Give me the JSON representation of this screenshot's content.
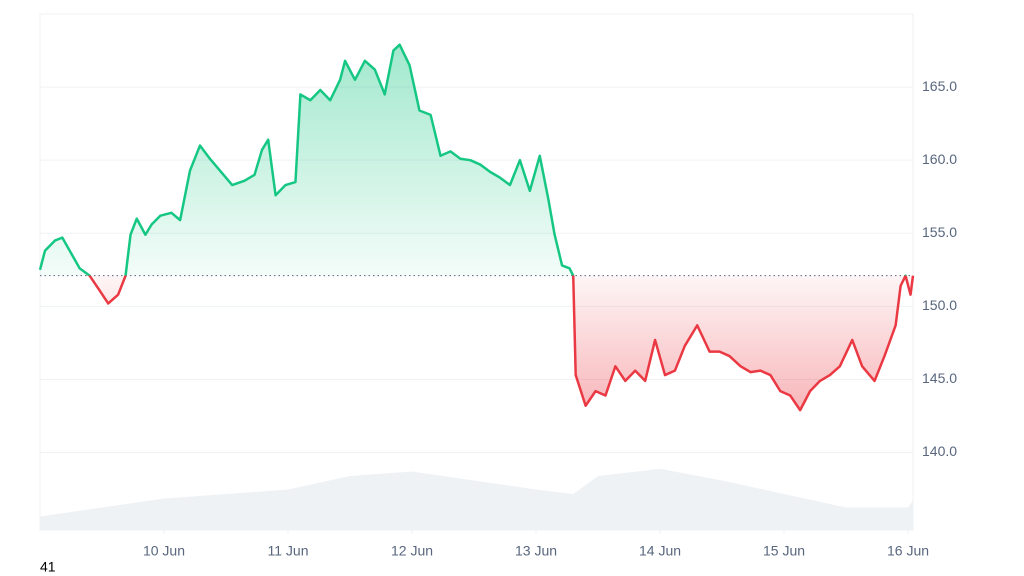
{
  "chart_data": {
    "type": "line",
    "x": [
      9.0,
      9.04,
      9.12,
      9.18,
      9.24,
      9.32,
      9.4,
      9.48,
      9.55,
      9.63,
      9.69,
      9.73,
      9.78,
      9.85,
      9.9,
      9.97,
      10.06,
      10.13,
      10.21,
      10.29,
      10.37,
      10.45,
      10.55,
      10.65,
      10.73,
      10.79,
      10.84,
      10.9,
      10.98,
      11.06,
      11.1,
      11.18,
      11.26,
      11.34,
      11.42,
      11.46,
      11.54,
      11.62,
      11.7,
      11.78,
      11.85,
      11.9,
      11.98,
      12.06,
      12.15,
      12.23,
      12.31,
      12.39,
      12.47,
      12.55,
      12.63,
      12.71,
      12.79,
      12.87,
      12.95,
      13.03,
      13.1,
      13.15,
      13.21,
      13.27,
      13.3,
      13.32,
      13.4,
      13.48,
      13.56,
      13.64,
      13.72,
      13.8,
      13.88,
      13.96,
      14.04,
      14.12,
      14.2,
      14.3,
      14.4,
      14.48,
      14.56,
      14.65,
      14.73,
      14.81,
      14.89,
      14.97,
      15.05,
      15.13,
      15.21,
      15.29,
      15.37,
      15.45,
      15.55,
      15.63,
      15.73,
      15.81,
      15.9,
      15.94,
      15.98,
      16.02,
      16.04
    ],
    "values": [
      152.5,
      153.8,
      154.5,
      154.7,
      153.8,
      152.6,
      152.1,
      151.1,
      150.2,
      150.8,
      152.1,
      154.9,
      156.0,
      154.9,
      155.6,
      156.2,
      156.4,
      155.9,
      159.3,
      161.0,
      160.1,
      159.3,
      158.3,
      158.6,
      159.0,
      160.7,
      161.4,
      157.6,
      158.3,
      158.5,
      164.5,
      164.1,
      164.8,
      164.1,
      165.5,
      166.8,
      165.5,
      166.8,
      166.2,
      164.5,
      167.5,
      167.9,
      166.5,
      163.4,
      163.1,
      160.3,
      160.6,
      160.1,
      160.0,
      159.7,
      159.2,
      158.8,
      158.3,
      160.0,
      157.9,
      160.3,
      157.3,
      154.9,
      152.8,
      152.6,
      152.1,
      145.3,
      143.2,
      144.2,
      143.9,
      145.9,
      144.9,
      145.6,
      144.9,
      147.7,
      145.3,
      145.6,
      147.3,
      148.7,
      146.9,
      146.9,
      146.6,
      145.9,
      145.5,
      145.6,
      145.3,
      144.2,
      143.9,
      142.9,
      144.2,
      144.9,
      145.3,
      145.9,
      147.7,
      145.9,
      144.9,
      146.6,
      148.7,
      151.4,
      152.1,
      150.8,
      152.1
    ],
    "baseline": 152.1,
    "up_color": "#16c784",
    "down_color": "#ea3943",
    "xlim": [
      9,
      16.04
    ],
    "xticks": [
      {
        "value": 10,
        "label": "10 Jun"
      },
      {
        "value": 11,
        "label": "11 Jun"
      },
      {
        "value": 12,
        "label": "12 Jun"
      },
      {
        "value": 13,
        "label": "13 Jun"
      },
      {
        "value": 14,
        "label": "14 Jun"
      },
      {
        "value": 15,
        "label": "15 Jun"
      },
      {
        "value": 16,
        "label": "16 Jun"
      }
    ],
    "ylim": [
      134.7,
      170
    ],
    "yticks": [
      {
        "value": 140,
        "label": "140.0"
      },
      {
        "value": 145,
        "label": "145.0"
      },
      {
        "value": 150,
        "label": "150.0"
      },
      {
        "value": 155,
        "label": "155.0"
      },
      {
        "value": 160,
        "label": "160.0"
      },
      {
        "value": 165,
        "label": "165.0"
      }
    ],
    "grid": true,
    "volume": {
      "color": "#eff2f5",
      "ylim": [
        0,
        100
      ],
      "x": [
        9,
        9.5,
        10,
        10.5,
        11,
        11.5,
        12,
        12.5,
        13,
        13.3,
        13.5,
        14,
        14.5,
        15,
        15.5,
        16,
        16.04
      ],
      "values": [
        15,
        25,
        35,
        40,
        45,
        60,
        65,
        55,
        45,
        40,
        60,
        68,
        55,
        40,
        25,
        25,
        33
      ]
    },
    "footnote": "41"
  }
}
